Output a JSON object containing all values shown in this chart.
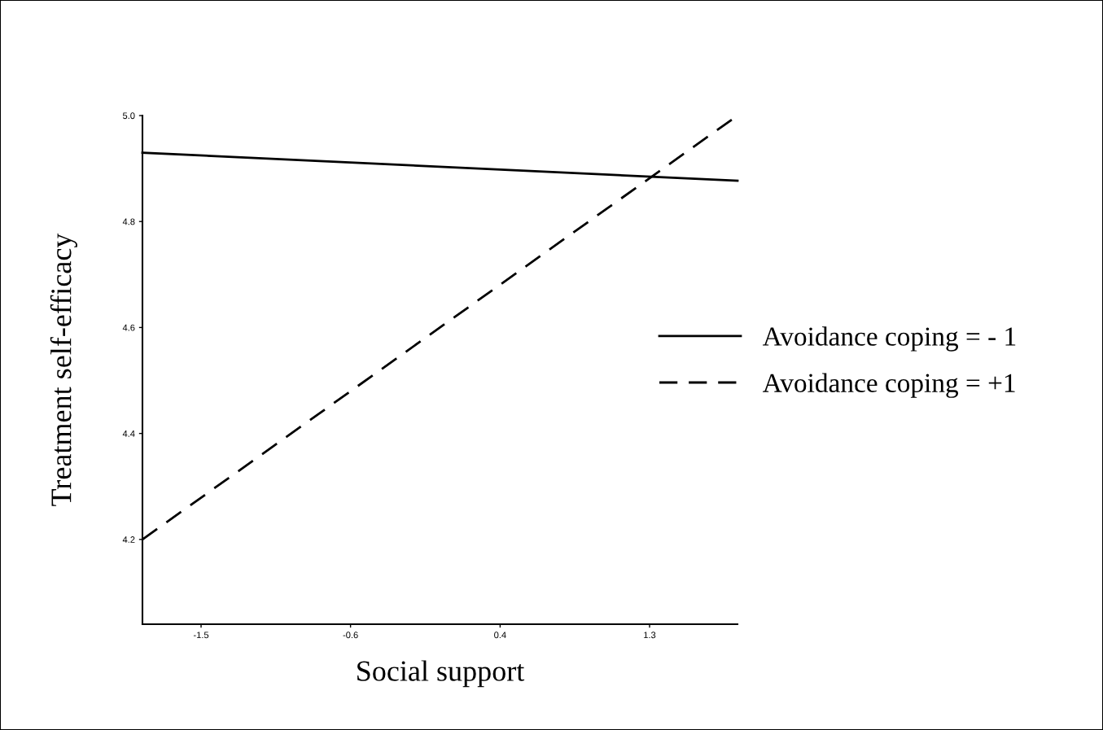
{
  "chart_data": {
    "type": "line",
    "xlabel": "Social support",
    "ylabel": "Treatment self-efficacy",
    "xlim": [
      -1.866,
      1.849
    ],
    "ylim": [
      4.04,
      5.0
    ],
    "xticks": [
      {
        "value": -1.5,
        "label": "-1.5"
      },
      {
        "value": -0.567,
        "label": "-0.6"
      },
      {
        "value": 0.367,
        "label": "0.4"
      },
      {
        "value": 1.3,
        "label": "1.3"
      }
    ],
    "yticks": [
      {
        "value": 4.2,
        "label": "4.2"
      },
      {
        "value": 4.4,
        "label": "4.4"
      },
      {
        "value": 4.6,
        "label": "4.6"
      },
      {
        "value": 4.8,
        "label": "4.8"
      },
      {
        "value": 5.0,
        "label": "5.0"
      }
    ],
    "x": [
      -1.866,
      1.849
    ],
    "series": [
      {
        "name": "Avoidance coping = - 1",
        "color": "#000000",
        "line_style": "solid",
        "values": [
          4.93,
          4.877
        ]
      },
      {
        "name": "Avoidance coping = +1",
        "color": "#000000",
        "line_style": "dashed",
        "values": [
          4.2,
          5.0
        ]
      }
    ],
    "legend": "right",
    "grid": false,
    "marker": "none"
  }
}
